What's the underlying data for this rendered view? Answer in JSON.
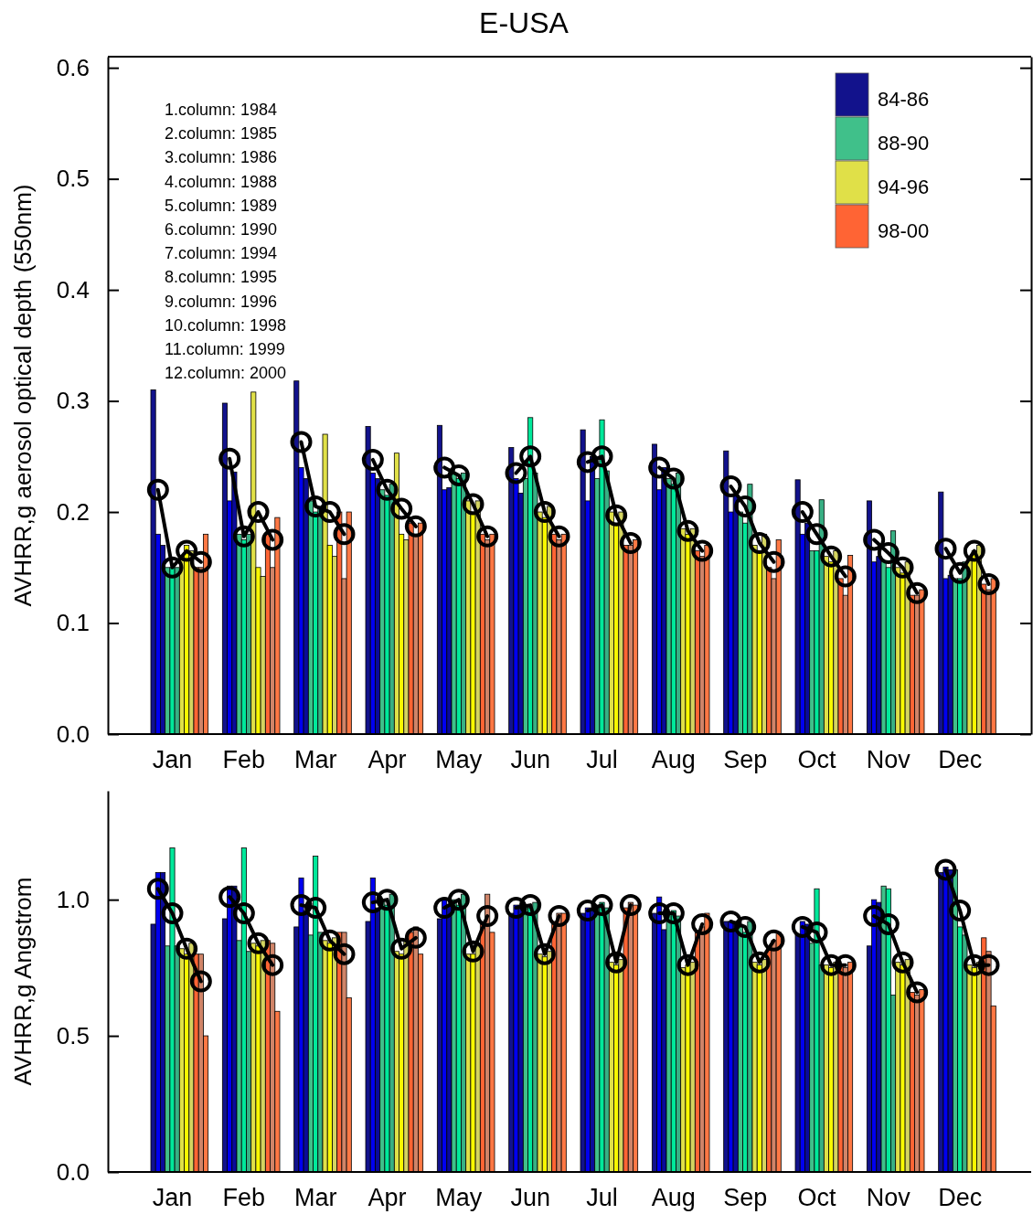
{
  "chart_data": [
    {
      "type": "bar",
      "title": "E-USA",
      "ylabel": "AVHRR,g aerosol optical depth (550nm)",
      "legend": "top right",
      "categories": [
        null,
        "Jan",
        null,
        null,
        null,
        null,
        "Feb",
        null,
        null,
        null,
        null,
        "Mar",
        null,
        null,
        null,
        null,
        "Apr",
        null,
        null,
        null,
        null,
        "May",
        null,
        null,
        null,
        null,
        "Jun",
        null,
        null,
        null,
        null,
        "Jul",
        null,
        null,
        null,
        null,
        "Aug",
        null,
        null,
        null,
        null,
        "Sep",
        null,
        null,
        null,
        null,
        "Oct",
        null,
        null,
        null,
        null,
        "Nov",
        null,
        null,
        null,
        null,
        "Dec",
        null,
        null,
        null
      ],
      "ylim": [
        0,
        0.61
      ],
      "yticks": [
        {
          "value": 0,
          "label": "0.0"
        },
        {
          "value": 0.1,
          "label": "0.1"
        },
        {
          "value": 0.2,
          "label": "0.2"
        },
        {
          "value": 0.3,
          "label": "0.3"
        },
        {
          "value": 0.4,
          "label": "0.4"
        },
        {
          "value": 0.5,
          "label": "0.5"
        },
        {
          "value": 0.6,
          "label": "0.6"
        }
      ],
      "annotations": [
        "1.column: 1984",
        "2.column: 1985",
        "3.column: 1986",
        "4.column: 1988",
        "5.column: 1989",
        "6.column: 1990",
        "7.column: 1994",
        "8.column: 1995",
        "9.column: 1996",
        "10.column: 1998",
        "11.column: 1999",
        "12.column: 2000"
      ],
      "series": [
        {
          "name": "84-86",
          "color": "#12128c",
          "values": [
            0.31,
            null,
            null,
            null,
            null,
            0.298,
            null,
            null,
            null,
            null,
            0.318,
            null,
            null,
            null,
            null,
            0.277,
            null,
            null,
            null,
            null,
            0.278,
            null,
            null,
            null,
            null,
            0.258,
            null,
            null,
            null,
            null,
            0.274,
            null,
            null,
            null,
            null,
            0.261,
            null,
            null,
            null,
            null,
            0.255,
            null,
            null,
            null,
            null,
            0.229,
            null,
            null,
            null,
            null,
            0.21,
            null,
            null,
            null,
            null,
            0.218,
            null,
            null,
            null,
            null
          ]
        },
        {
          "color": "#0000f0",
          "values": [
            0.18,
            null,
            null,
            null,
            null,
            0.21,
            null,
            null,
            null,
            null,
            0.24,
            null,
            null,
            null,
            null,
            0.235,
            null,
            null,
            null,
            null,
            0.22,
            null,
            null,
            null,
            null,
            0.23,
            null,
            null,
            null,
            null,
            0.21,
            null,
            null,
            null,
            null,
            0.22,
            null,
            null,
            null,
            null,
            0.2,
            null,
            null,
            null,
            null,
            0.18,
            null,
            null,
            null,
            null,
            0.155,
            null,
            null,
            null,
            null,
            0.14,
            null,
            null,
            null,
            null
          ]
        },
        {
          "color": "#0a0a9a",
          "values": [
            0.17,
            null,
            null,
            null,
            null,
            0.236,
            null,
            null,
            null,
            null,
            0.23,
            null,
            null,
            null,
            null,
            0.23,
            null,
            null,
            null,
            null,
            0.222,
            null,
            null,
            null,
            null,
            0.217,
            null,
            null,
            null,
            null,
            0.25,
            null,
            null,
            null,
            null,
            0.24,
            null,
            null,
            null,
            null,
            0.215,
            null,
            null,
            null,
            null,
            0.19,
            null,
            null,
            null,
            null,
            0.16,
            null,
            null,
            null,
            null,
            0.143,
            null,
            null,
            null,
            null
          ]
        },
        {
          "name": "88-90",
          "color": "#40c08a",
          "values": [
            null,
            0.15,
            null,
            null,
            null,
            null,
            0.18,
            null,
            null,
            null,
            null,
            0.21,
            null,
            null,
            null,
            null,
            0.22,
            null,
            null,
            null,
            null,
            0.235,
            null,
            null,
            null,
            null,
            0.23,
            null,
            null,
            null,
            null,
            0.23,
            null,
            null,
            null,
            null,
            0.23,
            null,
            null,
            null,
            null,
            0.2,
            null,
            null,
            null,
            null,
            0.165,
            null,
            null,
            null,
            null,
            0.155,
            null,
            null,
            null,
            null,
            0.14,
            null,
            null,
            null
          ]
        },
        {
          "color": "#00e89a",
          "values": [
            null,
            0.15,
            null,
            null,
            null,
            null,
            0.175,
            null,
            null,
            null,
            null,
            0.2,
            null,
            null,
            null,
            null,
            0.215,
            null,
            null,
            null,
            null,
            0.23,
            null,
            null,
            null,
            null,
            0.285,
            null,
            null,
            null,
            null,
            0.283,
            null,
            null,
            null,
            null,
            0.225,
            null,
            null,
            null,
            null,
            0.19,
            null,
            null,
            null,
            null,
            0.165,
            null,
            null,
            null,
            null,
            0.15,
            null,
            null,
            null,
            null,
            0.14,
            null,
            null,
            null
          ]
        },
        {
          "color": "#38b084",
          "values": [
            null,
            0.15,
            null,
            null,
            null,
            null,
            0.18,
            null,
            null,
            null,
            null,
            0.205,
            null,
            null,
            null,
            null,
            0.225,
            null,
            null,
            null,
            null,
            0.235,
            null,
            null,
            null,
            null,
            0.235,
            null,
            null,
            null,
            null,
            0.237,
            null,
            null,
            null,
            null,
            0.235,
            null,
            null,
            null,
            null,
            0.225,
            null,
            null,
            null,
            null,
            0.211,
            null,
            null,
            null,
            null,
            0.183,
            null,
            null,
            null,
            null,
            0.155,
            null,
            null,
            null
          ]
        },
        {
          "name": "94-96",
          "color": "#e0e048",
          "values": [
            null,
            null,
            0.16,
            null,
            null,
            null,
            null,
            0.308,
            null,
            null,
            null,
            null,
            0.27,
            null,
            null,
            null,
            null,
            0.253,
            null,
            null,
            null,
            null,
            0.21,
            null,
            null,
            null,
            null,
            0.2,
            null,
            null,
            null,
            null,
            0.2,
            null,
            null,
            null,
            null,
            0.185,
            null,
            null,
            null,
            null,
            0.17,
            null,
            null,
            null,
            null,
            0.16,
            null,
            null,
            null,
            null,
            0.15,
            null,
            null,
            null,
            null,
            0.16,
            null,
            null
          ]
        },
        {
          "color": "#f8f800",
          "values": [
            null,
            null,
            0.17,
            null,
            null,
            null,
            null,
            0.15,
            null,
            null,
            null,
            null,
            0.17,
            null,
            null,
            null,
            null,
            0.18,
            null,
            null,
            null,
            null,
            0.2,
            null,
            null,
            null,
            null,
            0.195,
            null,
            null,
            null,
            null,
            0.19,
            null,
            null,
            null,
            null,
            0.18,
            null,
            null,
            null,
            null,
            0.165,
            null,
            null,
            null,
            null,
            0.155,
            null,
            null,
            null,
            null,
            0.145,
            null,
            null,
            null,
            null,
            0.165,
            null,
            null
          ]
        },
        {
          "color": "#d4d460",
          "values": [
            null,
            null,
            0.165,
            null,
            null,
            null,
            null,
            0.142,
            null,
            null,
            null,
            null,
            0.16,
            null,
            null,
            null,
            null,
            0.175,
            null,
            null,
            null,
            null,
            0.21,
            null,
            null,
            null,
            null,
            0.205,
            null,
            null,
            null,
            null,
            0.2,
            null,
            null,
            null,
            null,
            0.185,
            null,
            null,
            null,
            null,
            0.18,
            null,
            null,
            null,
            null,
            0.165,
            null,
            null,
            null,
            null,
            0.155,
            null,
            null,
            null,
            null,
            0.17,
            null,
            null
          ]
        },
        {
          "name": "98-00",
          "color": "#ff6434",
          "values": [
            null,
            null,
            null,
            0.15,
            null,
            null,
            null,
            null,
            0.18,
            null,
            null,
            null,
            null,
            0.2,
            null,
            null,
            null,
            null,
            0.19,
            null,
            null,
            null,
            null,
            0.18,
            null,
            null,
            null,
            null,
            0.18,
            null,
            null,
            null,
            null,
            0.17,
            null,
            null,
            null,
            null,
            0.165,
            null,
            null,
            null,
            null,
            0.15,
            null,
            null,
            null,
            null,
            0.14,
            null,
            null,
            null,
            null,
            0.125,
            null,
            null,
            null,
            null,
            0.135,
            null
          ]
        },
        {
          "color": "#d08468",
          "values": [
            null,
            null,
            null,
            0.15,
            null,
            null,
            null,
            null,
            0.15,
            null,
            null,
            null,
            null,
            0.14,
            null,
            null,
            null,
            null,
            0.18,
            null,
            null,
            null,
            null,
            0.175,
            null,
            null,
            null,
            null,
            0.175,
            null,
            null,
            null,
            null,
            0.17,
            null,
            null,
            null,
            null,
            0.16,
            null,
            null,
            null,
            null,
            0.14,
            null,
            null,
            null,
            null,
            0.125,
            null,
            null,
            null,
            null,
            0.125,
            null,
            null,
            null,
            null,
            0.13,
            null
          ]
        },
        {
          "color": "#ff7844",
          "values": [
            null,
            null,
            null,
            0.18,
            null,
            null,
            null,
            null,
            0.195,
            null,
            null,
            null,
            null,
            0.2,
            null,
            null,
            null,
            null,
            0.19,
            null,
            null,
            null,
            null,
            0.18,
            null,
            null,
            null,
            null,
            0.18,
            null,
            null,
            null,
            null,
            0.175,
            null,
            null,
            null,
            null,
            0.17,
            null,
            null,
            null,
            null,
            0.175,
            null,
            null,
            null,
            null,
            0.161,
            null,
            null,
            null,
            null,
            0.13,
            null,
            null,
            null,
            null,
            0.14,
            null
          ]
        },
        {
          "type": "line",
          "marker": "circle",
          "color": "#000000",
          "values": [
            0.22,
            0.15,
            0.165,
            0.155,
            null,
            0.248,
            0.178,
            0.2,
            0.175,
            null,
            0.263,
            0.205,
            0.2,
            0.18,
            null,
            0.247,
            0.22,
            0.203,
            0.187,
            null,
            0.24,
            0.233,
            0.207,
            0.178,
            null,
            0.235,
            0.25,
            0.2,
            0.178,
            null,
            0.245,
            0.25,
            0.197,
            0.172,
            null,
            0.24,
            0.23,
            0.183,
            0.165,
            null,
            0.223,
            0.205,
            0.172,
            0.155,
            null,
            0.2,
            0.18,
            0.16,
            0.142,
            null,
            0.175,
            0.163,
            0.15,
            0.127,
            null,
            0.167,
            0.145,
            0.165,
            0.135,
            null
          ]
        }
      ]
    },
    {
      "type": "bar",
      "ylabel": "AVHRR,g  Angstrom",
      "categories": [
        null,
        "Jan",
        null,
        null,
        null,
        null,
        "Feb",
        null,
        null,
        null,
        null,
        "Mar",
        null,
        null,
        null,
        null,
        "Apr",
        null,
        null,
        null,
        null,
        "May",
        null,
        null,
        null,
        null,
        "Jun",
        null,
        null,
        null,
        null,
        "Jul",
        null,
        null,
        null,
        null,
        "Aug",
        null,
        null,
        null,
        null,
        "Sep",
        null,
        null,
        null,
        null,
        "Oct",
        null,
        null,
        null,
        null,
        "Nov",
        null,
        null,
        null,
        null,
        "Dec",
        null,
        null,
        null
      ],
      "ylim": [
        0,
        1.4
      ],
      "yticks": [
        {
          "value": 0,
          "label": "0.0"
        },
        {
          "value": 0.5,
          "label": "0.5"
        },
        {
          "value": 1,
          "label": "1.0"
        }
      ],
      "series": [
        {
          "color": "#12128c",
          "values": [
            0.91,
            null,
            null,
            null,
            null,
            0.93,
            null,
            null,
            null,
            null,
            0.9,
            null,
            null,
            null,
            null,
            0.92,
            null,
            null,
            null,
            null,
            0.93,
            null,
            null,
            null,
            null,
            0.95,
            null,
            null,
            null,
            null,
            0.95,
            null,
            null,
            null,
            null,
            0.95,
            null,
            null,
            null,
            null,
            0.92,
            null,
            null,
            null,
            null,
            0.87,
            null,
            null,
            null,
            null,
            0.83,
            null,
            null,
            null,
            null,
            1.1,
            null,
            null,
            null,
            null
          ]
        },
        {
          "color": "#0000f0",
          "values": [
            1.1,
            null,
            null,
            null,
            null,
            1.05,
            null,
            null,
            null,
            null,
            1.08,
            null,
            null,
            null,
            null,
            1.08,
            null,
            null,
            null,
            null,
            1.0,
            null,
            null,
            null,
            null,
            0.98,
            null,
            null,
            null,
            null,
            0.97,
            null,
            null,
            null,
            null,
            1.01,
            null,
            null,
            null,
            null,
            0.92,
            null,
            null,
            null,
            null,
            0.92,
            null,
            null,
            null,
            null,
            1.0,
            null,
            null,
            null,
            null,
            1.12,
            null,
            null,
            null,
            null
          ]
        },
        {
          "color": "#0a0a9a",
          "values": [
            1.1,
            null,
            null,
            null,
            null,
            1.05,
            null,
            null,
            null,
            null,
            0.96,
            null,
            null,
            null,
            null,
            0.97,
            null,
            null,
            null,
            null,
            0.98,
            null,
            null,
            null,
            null,
            0.98,
            null,
            null,
            null,
            null,
            0.96,
            null,
            null,
            null,
            null,
            0.89,
            null,
            null,
            null,
            null,
            0.92,
            null,
            null,
            null,
            null,
            0.91,
            null,
            null,
            null,
            null,
            0.99,
            null,
            null,
            null,
            null,
            1.11,
            null,
            null,
            null,
            null
          ]
        },
        {
          "color": "#40c08a",
          "values": [
            null,
            0.83,
            null,
            null,
            null,
            null,
            0.85,
            null,
            null,
            null,
            null,
            0.87,
            null,
            null,
            null,
            null,
            1.0,
            null,
            null,
            null,
            null,
            1.0,
            null,
            null,
            null,
            null,
            0.98,
            null,
            null,
            null,
            null,
            0.98,
            null,
            null,
            null,
            null,
            0.95,
            null,
            null,
            null,
            null,
            0.9,
            null,
            null,
            null,
            null,
            0.84,
            null,
            null,
            null,
            null,
            1.05,
            null,
            null,
            null,
            null,
            1.11,
            null,
            null,
            null
          ]
        },
        {
          "color": "#00e89a",
          "values": [
            null,
            1.19,
            null,
            null,
            null,
            null,
            1.19,
            null,
            null,
            null,
            null,
            1.16,
            null,
            null,
            null,
            null,
            0.98,
            null,
            null,
            null,
            null,
            0.98,
            null,
            null,
            null,
            null,
            0.97,
            null,
            null,
            null,
            null,
            0.99,
            null,
            null,
            null,
            null,
            0.96,
            null,
            null,
            null,
            null,
            0.88,
            null,
            null,
            null,
            null,
            1.04,
            null,
            null,
            null,
            null,
            1.04,
            null,
            null,
            null,
            null,
            0.9,
            null,
            null,
            null
          ]
        },
        {
          "color": "#38b084",
          "values": [
            null,
            0.83,
            null,
            null,
            null,
            null,
            0.81,
            null,
            null,
            null,
            null,
            0.88,
            null,
            null,
            null,
            null,
            1.02,
            null,
            null,
            null,
            null,
            1.02,
            null,
            null,
            null,
            null,
            0.99,
            null,
            null,
            null,
            null,
            0.97,
            null,
            null,
            null,
            null,
            0.94,
            null,
            null,
            null,
            null,
            0.92,
            null,
            null,
            null,
            null,
            0.76,
            null,
            null,
            null,
            null,
            0.65,
            null,
            null,
            null,
            null,
            0.87,
            null,
            null,
            null
          ]
        },
        {
          "color": "#e0e048",
          "values": [
            null,
            null,
            0.82,
            null,
            null,
            null,
            null,
            0.84,
            null,
            null,
            null,
            null,
            0.85,
            null,
            null,
            null,
            null,
            0.81,
            null,
            null,
            null,
            null,
            0.8,
            null,
            null,
            null,
            null,
            0.8,
            null,
            null,
            null,
            null,
            0.77,
            null,
            null,
            null,
            null,
            0.75,
            null,
            null,
            null,
            null,
            0.77,
            null,
            null,
            null,
            null,
            0.76,
            null,
            null,
            null,
            null,
            0.77,
            null,
            null,
            null,
            null,
            0.76,
            null,
            null
          ]
        },
        {
          "color": "#f8f800",
          "values": [
            null,
            null,
            0.8,
            null,
            null,
            null,
            null,
            0.83,
            null,
            null,
            null,
            null,
            0.84,
            null,
            null,
            null,
            null,
            0.8,
            null,
            null,
            null,
            null,
            0.8,
            null,
            null,
            null,
            null,
            0.79,
            null,
            null,
            null,
            null,
            0.76,
            null,
            null,
            null,
            null,
            0.76,
            null,
            null,
            null,
            null,
            0.76,
            null,
            null,
            null,
            null,
            0.75,
            null,
            null,
            null,
            null,
            0.76,
            null,
            null,
            null,
            null,
            0.75,
            null,
            null
          ]
        },
        {
          "color": "#d4d460",
          "values": [
            null,
            null,
            0.84,
            null,
            null,
            null,
            null,
            0.85,
            null,
            null,
            null,
            null,
            0.86,
            null,
            null,
            null,
            null,
            0.85,
            null,
            null,
            null,
            null,
            0.83,
            null,
            null,
            null,
            null,
            0.81,
            null,
            null,
            null,
            null,
            0.78,
            null,
            null,
            null,
            null,
            0.77,
            null,
            null,
            null,
            null,
            0.78,
            null,
            null,
            null,
            null,
            0.77,
            null,
            null,
            null,
            null,
            0.78,
            null,
            null,
            null,
            null,
            0.77,
            null,
            null
          ]
        },
        {
          "color": "#ff6434",
          "values": [
            null,
            null,
            null,
            0.8,
            null,
            null,
            null,
            null,
            0.85,
            null,
            null,
            null,
            null,
            0.88,
            null,
            null,
            null,
            null,
            0.88,
            null,
            null,
            null,
            null,
            0.92,
            null,
            null,
            null,
            null,
            0.92,
            null,
            null,
            null,
            null,
            0.97,
            null,
            null,
            null,
            null,
            0.88,
            null,
            null,
            null,
            null,
            0.82,
            null,
            null,
            null,
            null,
            0.76,
            null,
            null,
            null,
            null,
            0.66,
            null,
            null,
            null,
            null,
            0.86,
            null
          ]
        },
        {
          "color": "#d08468",
          "values": [
            null,
            null,
            null,
            0.8,
            null,
            null,
            null,
            null,
            0.84,
            null,
            null,
            null,
            null,
            0.88,
            null,
            null,
            null,
            null,
            0.9,
            null,
            null,
            null,
            null,
            1.02,
            null,
            null,
            null,
            null,
            0.95,
            null,
            null,
            null,
            null,
            0.99,
            null,
            null,
            null,
            null,
            0.9,
            null,
            null,
            null,
            null,
            0.85,
            null,
            null,
            null,
            null,
            0.75,
            null,
            null,
            null,
            null,
            0.65,
            null,
            null,
            null,
            null,
            0.81,
            null
          ]
        },
        {
          "color": "#ff7844",
          "values": [
            null,
            null,
            null,
            0.5,
            null,
            null,
            null,
            null,
            0.59,
            null,
            null,
            null,
            null,
            0.64,
            null,
            null,
            null,
            null,
            0.8,
            null,
            null,
            null,
            null,
            0.88,
            null,
            null,
            null,
            null,
            0.95,
            null,
            null,
            null,
            null,
            0.98,
            null,
            null,
            null,
            null,
            0.95,
            null,
            null,
            null,
            null,
            0.88,
            null,
            null,
            null,
            null,
            0.77,
            null,
            null,
            null,
            null,
            0.67,
            null,
            null,
            null,
            null,
            0.61,
            null
          ]
        },
        {
          "type": "line",
          "marker": "circle",
          "color": "#000000",
          "values": [
            1.04,
            0.95,
            0.82,
            0.7,
            null,
            1.01,
            0.95,
            0.84,
            0.76,
            null,
            0.98,
            0.97,
            0.85,
            0.8,
            null,
            0.99,
            1.0,
            0.82,
            0.86,
            null,
            0.97,
            1.0,
            0.81,
            0.94,
            null,
            0.97,
            0.98,
            0.8,
            0.94,
            null,
            0.96,
            0.98,
            0.77,
            0.98,
            null,
            0.95,
            0.95,
            0.76,
            0.91,
            null,
            0.92,
            0.9,
            0.77,
            0.85,
            null,
            0.9,
            0.88,
            0.76,
            0.76,
            null,
            0.94,
            0.91,
            0.77,
            0.66,
            null,
            1.11,
            0.96,
            0.76,
            0.76,
            null
          ]
        }
      ]
    }
  ]
}
